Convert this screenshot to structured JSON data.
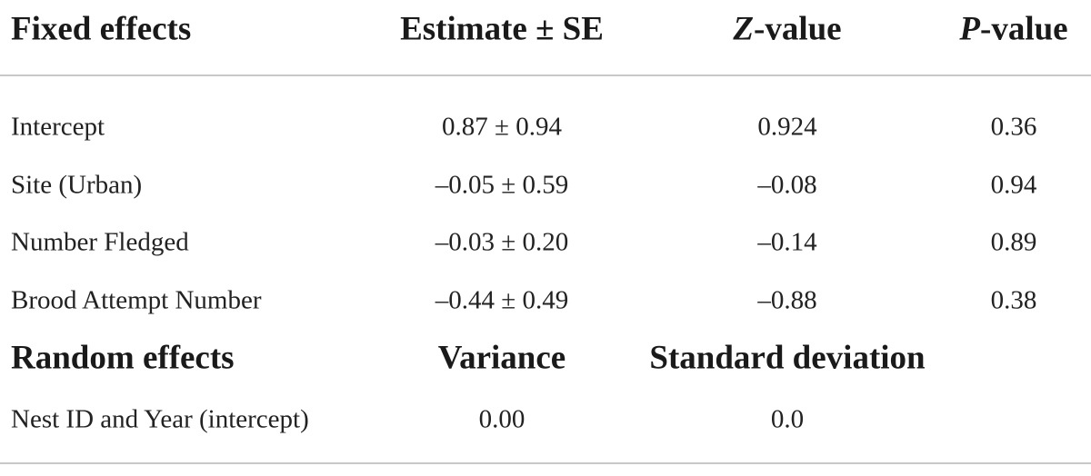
{
  "table": {
    "header": [
      "Fixed effects",
      "Estimate ± SE",
      "Z-value",
      "P-value"
    ],
    "rows": [
      [
        "Intercept",
        "0.87 ± 0.94",
        "0.924",
        "0.36"
      ],
      [
        "Site (Urban)",
        "–0.05 ± 0.59",
        "–0.08",
        "0.94"
      ],
      [
        "Number Fledged",
        "–0.03 ± 0.20",
        "–0.14",
        "0.89"
      ],
      [
        "Brood Attempt Number",
        "–0.44 ± 0.49",
        "–0.88",
        "0.38"
      ]
    ],
    "random_header": [
      "Random effects",
      "Variance",
      "Standard deviation"
    ],
    "random_rows": [
      [
        "Nest ID and Year (intercept)",
        "0.00",
        "0.0"
      ]
    ]
  }
}
